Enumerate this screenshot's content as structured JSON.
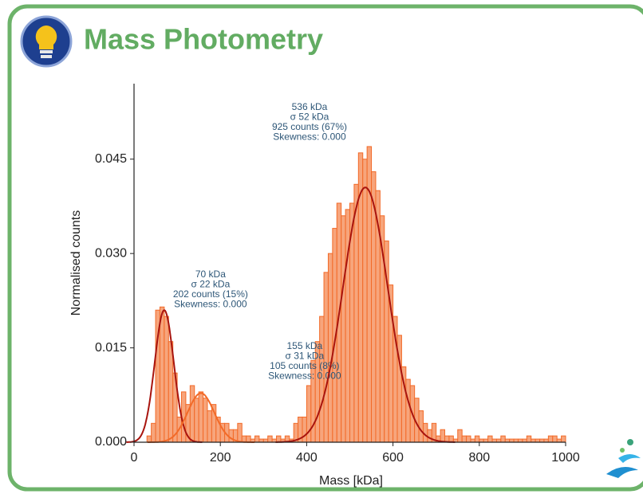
{
  "title": "Mass Photometry",
  "chart_data": {
    "type": "histogram",
    "x_label": "Mass [kDa]",
    "y_label": "Normalised counts",
    "color": "#f7a57c",
    "edge_color": "#f26a28",
    "xlim": [
      0,
      1000
    ],
    "xticks": [
      0,
      200,
      400,
      600,
      800,
      1000
    ],
    "ylim": [
      0,
      0.057
    ],
    "yticks": [
      {
        "value": 0,
        "label": "0.000"
      },
      {
        "value": 0.015,
        "label": "0.015"
      },
      {
        "value": 0.03,
        "label": "0.030"
      },
      {
        "value": 0.045,
        "label": "0.045"
      }
    ],
    "bins": [
      30,
      40,
      50,
      60,
      70,
      80,
      90,
      100,
      110,
      120,
      130,
      140,
      150,
      160,
      170,
      180,
      190,
      200,
      210,
      220,
      230,
      240,
      250,
      260,
      270,
      280,
      290,
      300,
      310,
      320,
      330,
      340,
      350,
      360,
      370,
      380,
      390,
      400,
      410,
      420,
      430,
      440,
      450,
      460,
      470,
      480,
      490,
      500,
      510,
      520,
      530,
      540,
      550,
      560,
      570,
      580,
      590,
      600,
      610,
      620,
      630,
      640,
      650,
      660,
      670,
      680,
      690,
      700,
      710,
      720,
      730,
      740,
      750,
      760,
      770,
      780,
      790,
      800,
      810,
      820,
      830,
      840,
      850,
      860,
      870,
      880,
      890,
      900,
      910,
      920,
      930,
      940,
      950,
      960,
      970,
      980,
      990,
      1000
    ],
    "values": [
      0.001,
      0.003,
      0.021,
      0.0215,
      0.02,
      0.016,
      0.011,
      0.004,
      0.008,
      0.006,
      0.009,
      0.007,
      0.008,
      0.007,
      0.005,
      0.006,
      0.004,
      0.003,
      0.003,
      0.002,
      0.002,
      0.003,
      0.001,
      0.001,
      0.0005,
      0.001,
      0.0005,
      0.0005,
      0.001,
      0.0005,
      0.001,
      0.0005,
      0.001,
      0.0005,
      0.003,
      0.004,
      0.004,
      0.009,
      0.013,
      0.016,
      0.02,
      0.027,
      0.03,
      0.034,
      0.038,
      0.036,
      0.037,
      0.038,
      0.041,
      0.046,
      0.045,
      0.047,
      0.043,
      0.04,
      0.036,
      0.032,
      0.025,
      0.02,
      0.017,
      0.012,
      0.01,
      0.009,
      0.007,
      0.005,
      0.003,
      0.002,
      0.003,
      0.001,
      0.002,
      0.001,
      0.001,
      0.0005,
      0.002,
      0.001,
      0.001,
      0.0005,
      0.001,
      0.0005,
      0.0005,
      0.001,
      0.0005,
      0.0005,
      0.001,
      0.0005,
      0.0005,
      0.0005,
      0.0005,
      0.0005,
      0.001,
      0.0005,
      0.0005,
      0.0005,
      0.0005,
      0.001,
      0.001,
      0.0005,
      0.001
    ],
    "fits": [
      {
        "mean": 70,
        "sigma": 22,
        "peak": 0.021,
        "color": "#a8140e",
        "labels": [
          "70 kDa",
          "σ 22 kDa",
          "202 counts (15%)",
          "Skewness: 0.000"
        ]
      },
      {
        "mean": 155,
        "sigma": 31,
        "peak": 0.0078,
        "color": "#f26a28",
        "labels": [
          "155 kDa",
          "σ 31 kDa",
          "105 counts (8%)",
          "Skewness: 0.000"
        ]
      },
      {
        "mean": 536,
        "sigma": 52,
        "peak": 0.0405,
        "color": "#a8140e",
        "labels": [
          "536 kDa",
          "σ 52 kDa",
          "925 counts (67%)",
          "Skewness: 0.000"
        ]
      }
    ]
  }
}
